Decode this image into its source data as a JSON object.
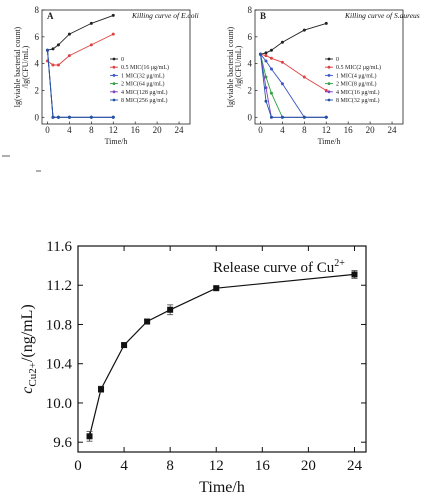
{
  "chart_data": [
    {
      "type": "line",
      "panel_label": "A",
      "title": "Killing curve of E.coli",
      "xlabel": "Time/h",
      "ylabel_lines": [
        "lg(viable bacterial count)",
        "/lg(CFU/mL)"
      ],
      "xlim": [
        -1,
        26
      ],
      "ylim": [
        -0.5,
        8
      ],
      "xticks": [
        "0",
        "4",
        "8",
        "12",
        "16",
        "20",
        "24"
      ],
      "yticks": [
        "0",
        "2",
        "4",
        "6",
        "8"
      ],
      "series": [
        {
          "name": "0",
          "color": "#222222",
          "points": [
            [
              0,
              5.0
            ],
            [
              1,
              5.1
            ],
            [
              2,
              5.4
            ],
            [
              4,
              6.2
            ],
            [
              8,
              7.0
            ],
            [
              12,
              7.6
            ]
          ]
        },
        {
          "name": "0.5 MIC(16 μg/mL)",
          "color": "#e04040",
          "points": [
            [
              0,
              4.2
            ],
            [
              1,
              3.9
            ],
            [
              2,
              3.9
            ],
            [
              4,
              4.6
            ],
            [
              8,
              5.4
            ],
            [
              12,
              6.2
            ]
          ]
        },
        {
          "name": "1 MIC(32 μg/mL)",
          "color": "#3a55c8",
          "points": [
            [
              0,
              5.0
            ],
            [
              1,
              0
            ],
            [
              2,
              0
            ],
            [
              4,
              0
            ],
            [
              8,
              0
            ],
            [
              12,
              0
            ]
          ]
        },
        {
          "name": "2 MIC(64 μg/mL)",
          "color": "#30a040",
          "points": [
            [
              0,
              5.0
            ],
            [
              1,
              0
            ],
            [
              2,
              0
            ],
            [
              4,
              0
            ],
            [
              8,
              0
            ],
            [
              12,
              0
            ]
          ]
        },
        {
          "name": "4 MIC(128 μg/mL)",
          "color": "#8040c0",
          "points": [
            [
              0,
              5.0
            ],
            [
              1,
              0
            ],
            [
              2,
              0
            ],
            [
              4,
              0
            ],
            [
              8,
              0
            ],
            [
              12,
              0
            ]
          ]
        },
        {
          "name": "8 MIC(256 μg/mL)",
          "color": "#2255aa",
          "points": [
            [
              0,
              5.0
            ],
            [
              1,
              0
            ],
            [
              2,
              0
            ],
            [
              4,
              0
            ],
            [
              8,
              0
            ],
            [
              12,
              0
            ]
          ]
        }
      ]
    },
    {
      "type": "line",
      "panel_label": "B",
      "title": "Killing curve of S.aureus",
      "xlabel": "Time/h",
      "ylabel_lines": [
        "lg(viable bacterial count)",
        "/lg(CFU/mL)"
      ],
      "xlim": [
        -1,
        26
      ],
      "ylim": [
        -0.5,
        8
      ],
      "xticks": [
        "0",
        "4",
        "8",
        "12",
        "16",
        "20",
        "24"
      ],
      "yticks": [
        "0",
        "2",
        "4",
        "6",
        "8"
      ],
      "series": [
        {
          "name": "0",
          "color": "#222222",
          "points": [
            [
              0,
              4.7
            ],
            [
              1,
              4.8
            ],
            [
              2,
              5.0
            ],
            [
              4,
              5.6
            ],
            [
              8,
              6.5
            ],
            [
              12,
              7.0
            ]
          ]
        },
        {
          "name": "0.5 MIC(2 μg/mL)",
          "color": "#e04040",
          "points": [
            [
              0,
              4.7
            ],
            [
              1,
              4.6
            ],
            [
              2,
              4.4
            ],
            [
              4,
              4.1
            ],
            [
              8,
              3.0
            ],
            [
              12,
              2.0
            ]
          ]
        },
        {
          "name": "1 MIC(4 μg/mL)",
          "color": "#3a55c8",
          "points": [
            [
              0,
              4.7
            ],
            [
              1,
              4.2
            ],
            [
              2,
              3.6
            ],
            [
              4,
              2.5
            ],
            [
              8,
              0
            ],
            [
              12,
              0
            ]
          ]
        },
        {
          "name": "2 MIC(8 μg/mL)",
          "color": "#30a040",
          "points": [
            [
              0,
              4.7
            ],
            [
              1,
              3.0
            ],
            [
              2,
              1.8
            ],
            [
              4,
              0
            ],
            [
              8,
              0
            ],
            [
              12,
              0
            ]
          ]
        },
        {
          "name": "4 MIC(16 μg/mL)",
          "color": "#8040c0",
          "points": [
            [
              0,
              4.7
            ],
            [
              1,
              2.2
            ],
            [
              2,
              0
            ],
            [
              4,
              0
            ],
            [
              8,
              0
            ],
            [
              12,
              0
            ]
          ]
        },
        {
          "name": "8 MIC(32 μg/mL)",
          "color": "#2255aa",
          "points": [
            [
              0,
              4.7
            ],
            [
              1,
              1.2
            ],
            [
              2,
              0
            ],
            [
              4,
              0
            ],
            [
              8,
              0
            ],
            [
              12,
              0
            ]
          ]
        }
      ]
    },
    {
      "type": "line",
      "title": "Release curve of Cu",
      "title_sup": "2+",
      "xlabel": "Time/h",
      "ylabel_prefix": "c",
      "ylabel_sub": "Cu2+",
      "ylabel_suffix": "/(ng/mL)",
      "xlim": [
        0,
        25
      ],
      "ylim": [
        9.5,
        11.6
      ],
      "xticks": [
        "0",
        "4",
        "8",
        "12",
        "16",
        "20",
        "24"
      ],
      "yticks": [
        "9.6",
        "10.0",
        "10.4",
        "10.8",
        "11.2",
        "11.6"
      ],
      "series": [
        {
          "color": "#111111",
          "points": [
            [
              1,
              9.66
            ],
            [
              2,
              10.14
            ],
            [
              4,
              10.59
            ],
            [
              6,
              10.83
            ],
            [
              8,
              10.95
            ],
            [
              12,
              11.17
            ],
            [
              24,
              11.31
            ]
          ],
          "errors": [
            0.05,
            0.03,
            0.02,
            0.02,
            0.05,
            0.02,
            0.04
          ]
        }
      ]
    }
  ]
}
